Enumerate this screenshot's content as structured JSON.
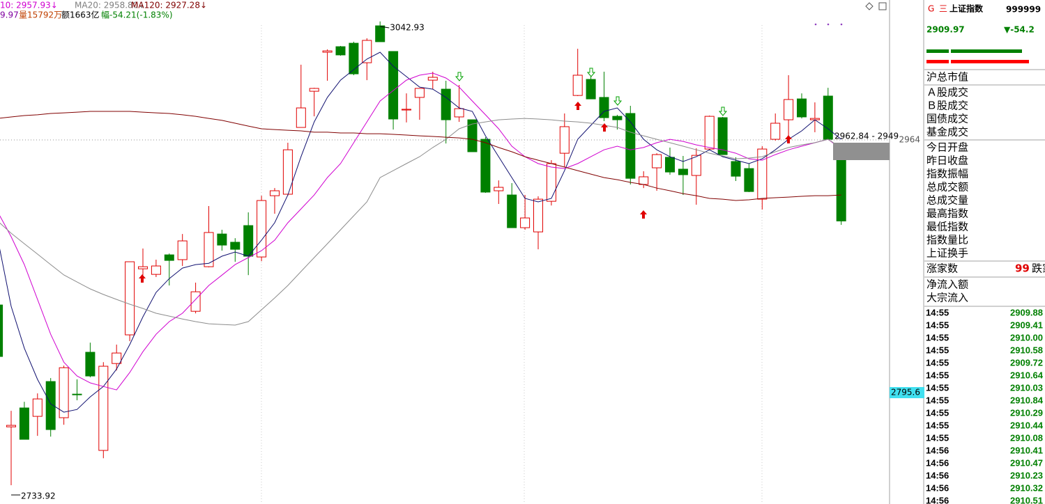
{
  "chart_data": {
    "type": "candlestick",
    "header_ma": [
      {
        "text": "10: 2957.93↓",
        "color": "#d000d0"
      },
      {
        "text": "MA20: 2958.80↓",
        "color": "#808080"
      },
      {
        "text": "MA120: 2927.28↓",
        "color": "#800000"
      }
    ],
    "header_info": [
      {
        "text": "9.97",
        "color": "#8000a0"
      },
      {
        "text": "量15792万",
        "color": "#c04000"
      },
      {
        "text": "额1663亿",
        "color": "#000000"
      },
      {
        "text": "幅-54.21(-1.83%)",
        "color": "#008000"
      }
    ],
    "ylim": [
      2721.4,
      3057.2
    ],
    "yticks": [
      2964
    ],
    "grid": true,
    "cursor_value": 2795.6,
    "range_label": "2962.84 - 2949",
    "up_color": "#e00000",
    "down_color": "#008000",
    "open": [
      2854.0,
      2772.8,
      2785.4,
      2779.8,
      2803.0,
      2778.9,
      2794.6,
      2822.5,
      2757.1,
      2815.0,
      2834.1,
      2878.1,
      2874.4,
      2887.4,
      2884.2,
      2849.8,
      2879.5,
      2901.3,
      2895.8,
      2906.9,
      2886.0,
      2926.8,
      2927.8,
      2972.3,
      2996.4,
      3022.4,
      3026.1,
      3028.4,
      3015.4,
      3040.0,
      3022.9,
      2983.9,
      2992.3,
      3003.8,
      2997.8,
      2979.3,
      2977.4,
      2964.4,
      2930.1,
      2927.3,
      2905.5,
      2902.7,
      2923.1,
      2955.1,
      2993.6,
      3004.3,
      2992.3,
      2979.7,
      2981.6,
      2934.3,
      2945.4,
      2952.4,
      2944.5,
      2940.3,
      2957.9,
      2978.8,
      2949.6,
      2944.9,
      2924.5,
      2964.4,
      2977.4,
      2991.3,
      2977.4,
      2993.2,
      2950.5
    ],
    "high": [
      2854.0,
      2783.5,
      2789.5,
      2795.1,
      2805.3,
      2813.6,
      2804.4,
      2828.9,
      2815.9,
      2827.6,
      2882.8,
      2891.6,
      2884.2,
      2888.3,
      2901.3,
      2868.9,
      2919.9,
      2904.1,
      2898.5,
      2915.7,
      2926.8,
      2931.9,
      2962.1,
      3014.1,
      2998.7,
      3024.3,
      3026.6,
      3029.4,
      3031.7,
      3042.93,
      3022.9,
      2995.0,
      2998.3,
      3009.4,
      3003.4,
      3000.6,
      2977.4,
      2965.8,
      2937.0,
      2935.2,
      2927.3,
      2926.4,
      2950.5,
      2981.6,
      3024.7,
      3009.4,
      3009.4,
      2980.7,
      2986.7,
      2943.1,
      2955.1,
      2958.9,
      2953.3,
      2958.4,
      2980.2,
      2979.3,
      2952.4,
      2948.2,
      2959.8,
      2981.6,
      3007.1,
      2995.0,
      2989.0,
      2998.7,
      2957.0
    ],
    "low": [
      2819.7,
      2733.92,
      2764.5,
      2766.8,
      2766.3,
      2774.2,
      2790.5,
      2805.8,
      2751.9,
      2810.4,
      2829.9,
      2873.9,
      2872.6,
      2867.0,
      2880.0,
      2848.4,
      2879.1,
      2890.2,
      2882.8,
      2873.9,
      2883.2,
      2914.8,
      2926.8,
      2972.3,
      2979.7,
      3003.4,
      3020.1,
      3007.1,
      3003.8,
      3029.4,
      2970.9,
      2975.6,
      2977.4,
      2997.8,
      2961.6,
      2976.0,
      2956.1,
      2928.7,
      2921.3,
      2905.5,
      2904.1,
      2891.1,
      2920.3,
      2945.9,
      2993.2,
      2991.3,
      2976.5,
      2970.9,
      2934.3,
      2931.9,
      2930.1,
      2940.8,
      2927.3,
      2920.8,
      2957.0,
      2954.2,
      2936.6,
      2929.2,
      2917.6,
      2963.5,
      2966.3,
      2978.3,
      2969.1,
      2964.0,
      2907.4
    ],
    "close": [
      2819.7,
      2773.8,
      2764.5,
      2791.4,
      2771.0,
      2812.2,
      2794.2,
      2806.7,
      2813.2,
      2822.0,
      2882.8,
      2879.5,
      2880.0,
      2883.7,
      2896.7,
      2862.8,
      2902.3,
      2893.9,
      2891.1,
      2886.5,
      2923.6,
      2930.1,
      2957.4,
      2985.3,
      2998.3,
      3023.3,
      3020.6,
      3008.0,
      3030.3,
      3029.4,
      2977.9,
      2984.4,
      2998.3,
      3005.7,
      2977.4,
      2984.8,
      2956.1,
      2929.2,
      2932.4,
      2905.5,
      2912.0,
      2924.5,
      2948.2,
      2972.8,
      3007.1,
      2991.3,
      2978.8,
      2977.4,
      2938.4,
      2939.4,
      2954.2,
      2942.6,
      2940.8,
      2953.7,
      2979.7,
      2954.2,
      2939.8,
      2929.6,
      2957.9,
      2975.1,
      2990.9,
      2979.3,
      2978.3,
      2964.4,
      2909.97
    ],
    "series": [
      {
        "color": "#101070",
        "values": [
          2897.2,
          2853.1,
          2825.2,
          2804.4,
          2788.1,
          2782.6,
          2784.4,
          2792.8,
          2799.7,
          2811.3,
          2827.6,
          2846.1,
          2862.4,
          2871.6,
          2878.6,
          2880.9,
          2881.8,
          2886.5,
          2889.3,
          2886.5,
          2897.2,
          2908.8,
          2927.3,
          2952.8,
          2976.0,
          2992.3,
          3003.8,
          3010.8,
          3017.8,
          3022.4,
          3013.1,
          3006.2,
          2999.2,
          2997.8,
          2992.3,
          2985.3,
          2983.0,
          2966.7,
          2952.8,
          2938.9,
          2925.0,
          2922.7,
          2925.0,
          2943.5,
          2964.4,
          2973.7,
          2983.0,
          2985.3,
          2976.0,
          2964.4,
          2957.4,
          2952.8,
          2949.6,
          2952.8,
          2957.4,
          2952.8,
          2950.5,
          2948.2,
          2951.4,
          2957.4,
          2964.4,
          2970.0,
          2977.4,
          2971.4,
          2964.4
        ]
      },
      {
        "color": "#d000d0",
        "values": [
          2915.7,
          2899.5,
          2880.9,
          2857.7,
          2834.5,
          2815.9,
          2806.7,
          2802.1,
          2799.7,
          2797.4,
          2809.0,
          2822.9,
          2834.5,
          2842.9,
          2848.5,
          2857.7,
          2867.0,
          2873.9,
          2880.9,
          2885.6,
          2890.2,
          2897.2,
          2908.8,
          2918.0,
          2927.3,
          2938.9,
          2948.2,
          2962.1,
          2976.0,
          2989.9,
          2996.9,
          3003.8,
          3007.1,
          3008.5,
          3005.2,
          2999.2,
          2989.9,
          2980.7,
          2971.4,
          2959.8,
          2952.8,
          2948.2,
          2945.9,
          2944.9,
          2948.2,
          2952.8,
          2957.4,
          2959.8,
          2957.4,
          2958.9,
          2962.1,
          2964.4,
          2963.0,
          2960.7,
          2958.9,
          2957.4,
          2955.1,
          2951.4,
          2950.5,
          2954.2,
          2957.4,
          2959.8,
          2962.1,
          2964.4,
          2957.93
        ]
      },
      {
        "color": "#8c8c8c",
        "values": [
          2909.7,
          2901.8,
          2894.8,
          2887.9,
          2880.9,
          2874.0,
          2869.3,
          2864.7,
          2861.0,
          2857.7,
          2854.5,
          2851.7,
          2848.5,
          2846.6,
          2844.7,
          2842.9,
          2841.5,
          2841.0,
          2840.6,
          2842.9,
          2850.8,
          2858.7,
          2867.0,
          2876.3,
          2885.6,
          2894.8,
          2904.1,
          2913.4,
          2922.7,
          2938.9,
          2943.5,
          2948.2,
          2952.8,
          2958.9,
          2964.4,
          2971.4,
          2974.6,
          2976.0,
          2977.4,
          2977.9,
          2978.3,
          2977.9,
          2977.4,
          2976.5,
          2976.0,
          2975.1,
          2973.7,
          2972.3,
          2969.1,
          2966.7,
          2964.4,
          2962.1,
          2959.8,
          2957.4,
          2955.1,
          2953.3,
          2951.4,
          2951.9,
          2952.8,
          2956.1,
          2958.9,
          2960.7,
          2962.1,
          2964.4,
          2958.8
        ]
      },
      {
        "color": "#800000",
        "values": [
          2978.3,
          2979.3,
          2980.2,
          2980.7,
          2981.6,
          2982.0,
          2982.5,
          2983.0,
          2983.0,
          2983.0,
          2983.0,
          2982.5,
          2982.0,
          2981.6,
          2980.7,
          2979.7,
          2978.3,
          2977.0,
          2975.1,
          2973.2,
          2971.4,
          2970.9,
          2970.4,
          2970.0,
          2969.1,
          2969.1,
          2968.6,
          2968.6,
          2968.1,
          2968.1,
          2967.7,
          2967.2,
          2966.7,
          2966.3,
          2965.8,
          2965.3,
          2964.4,
          2962.1,
          2958.9,
          2956.1,
          2952.8,
          2950.5,
          2948.2,
          2945.9,
          2943.5,
          2941.2,
          2938.9,
          2937.5,
          2935.7,
          2934.3,
          2931.9,
          2930.1,
          2928.2,
          2926.8,
          2925.0,
          2924.5,
          2923.6,
          2924.1,
          2925.0,
          2925.5,
          2925.9,
          2926.4,
          2926.8,
          2926.8,
          2927.28
        ]
      }
    ]
  },
  "panel": {
    "badge": "G",
    "menu": "三",
    "name": "上证指数",
    "code": "999999",
    "price": "2909.97",
    "change": "▼-54.2",
    "stats": [
      "沪总市值",
      "Ａ股成交",
      "Ｂ股成交",
      "国债成交",
      "基金成交",
      "今日开盘",
      "昨日收盘",
      "指数振幅",
      "总成交额",
      "总成交量",
      "最高指数",
      "最低指数",
      "指数量比",
      "上证换手",
      "涨家数",
      "净流入额",
      "大宗流入"
    ],
    "rise_count": "99",
    "fall_label": "跌家",
    "ticks": [
      [
        "14:55",
        "2909.88"
      ],
      [
        "14:55",
        "2909.41"
      ],
      [
        "14:55",
        "2910.00"
      ],
      [
        "14:55",
        "2910.58"
      ],
      [
        "14:55",
        "2909.72"
      ],
      [
        "14:55",
        "2910.64"
      ],
      [
        "14:55",
        "2910.03"
      ],
      [
        "14:55",
        "2910.84"
      ],
      [
        "14:55",
        "2910.29"
      ],
      [
        "14:55",
        "2910.44"
      ],
      [
        "14:55",
        "2910.08"
      ],
      [
        "14:56",
        "2910.41"
      ],
      [
        "14:56",
        "2910.47"
      ],
      [
        "14:56",
        "2910.23"
      ],
      [
        "14:56",
        "2910.32"
      ],
      [
        "14:56",
        "2910.51"
      ]
    ]
  }
}
